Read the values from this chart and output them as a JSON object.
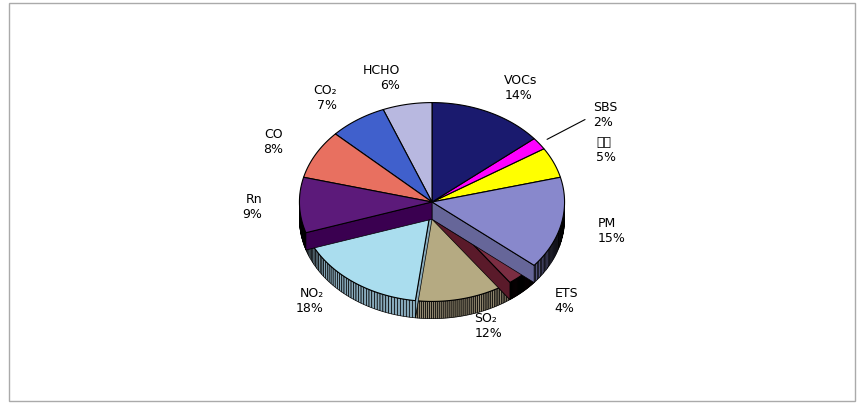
{
  "labels": [
    "VOCs",
    "SBS",
    "기타",
    "PM",
    "ETS",
    "SO₂",
    "NO₂",
    "Rn",
    "CO",
    "CO₂",
    "HCHO"
  ],
  "values": [
    14,
    2,
    5,
    15,
    4,
    12,
    18,
    9,
    8,
    7,
    6
  ],
  "colors": [
    "#1a1a6e",
    "#FF00FF",
    "#FFFF00",
    "#8888CC",
    "#7B2D42",
    "#B5AA82",
    "#AADDEE",
    "#5C1A7A",
    "#E87060",
    "#4060CC",
    "#B8B8E0"
  ],
  "shadow_colors": [
    "#111155",
    "#CC00CC",
    "#CCCC00",
    "#666699",
    "#5A1A2A",
    "#928870",
    "#88AABB",
    "#3A0050",
    "#C05040",
    "#2040AA",
    "#8888BB"
  ],
  "figsize": [
    8.64,
    4.06
  ],
  "dpi": 100,
  "background_color": "#FFFFFF",
  "border_color": "#AAAAAA",
  "label_fontsize": 9,
  "startangle": 90,
  "label_distance": 1.28
}
